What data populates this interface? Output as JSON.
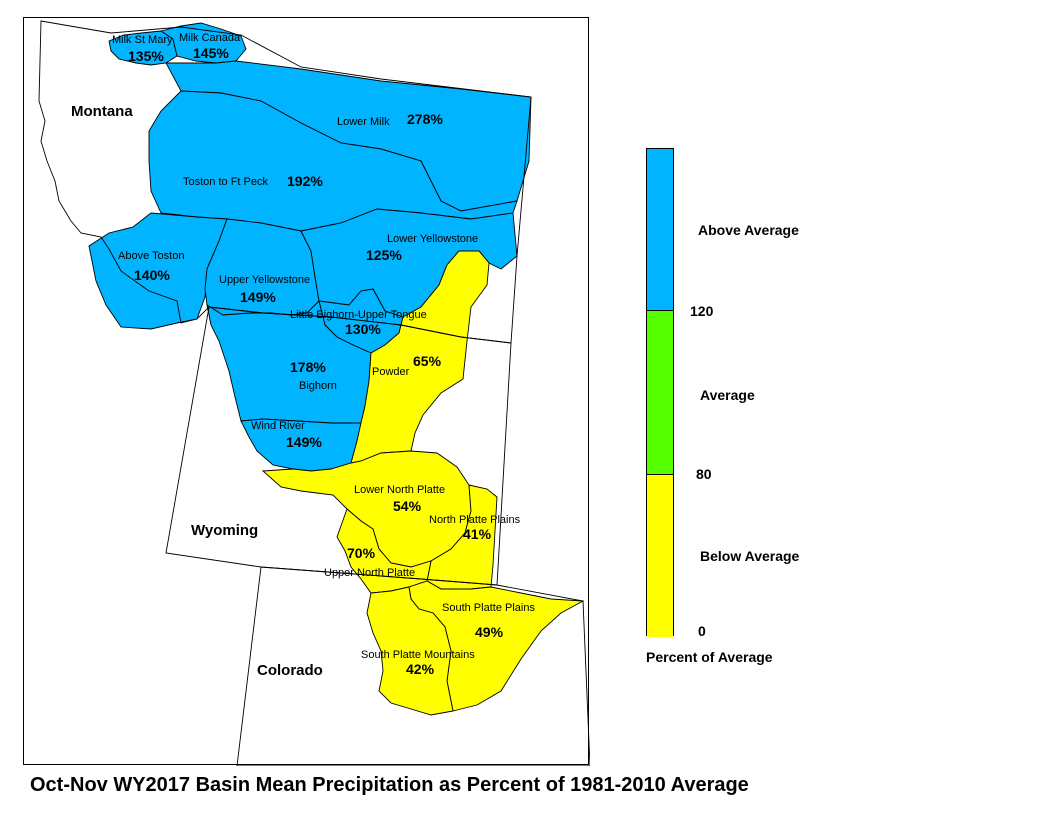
{
  "map": {
    "states": [
      {
        "id": "montana",
        "name": "Montana"
      },
      {
        "id": "wyoming",
        "name": "Wyoming"
      },
      {
        "id": "colorado",
        "name": "Colorado"
      }
    ],
    "basins": [
      {
        "id": "milk-st-mary",
        "name": "Milk St Mary",
        "percent": "135%",
        "category": "above"
      },
      {
        "id": "milk-canada",
        "name": "Milk Canada",
        "percent": "145%",
        "category": "above"
      },
      {
        "id": "lower-milk",
        "name": "Lower Milk",
        "percent": "278%",
        "category": "above"
      },
      {
        "id": "toston-to-ft-peck",
        "name": "Toston to Ft Peck",
        "percent": "192%",
        "category": "above"
      },
      {
        "id": "above-toston",
        "name": "Above Toston",
        "percent": "140%",
        "category": "above"
      },
      {
        "id": "upper-yellowstone",
        "name": "Upper Yellowstone",
        "percent": "149%",
        "category": "above"
      },
      {
        "id": "lower-yellowstone",
        "name": "Lower Yellowstone",
        "percent": "125%",
        "category": "above"
      },
      {
        "id": "little-bighorn-upper-tongue",
        "name": "Little Bighorn-Upper Tongue",
        "percent": "130%",
        "category": "above"
      },
      {
        "id": "bighorn",
        "name": "Bighorn",
        "percent": "178%",
        "category": "above"
      },
      {
        "id": "wind-river",
        "name": "Wind River",
        "percent": "149%",
        "category": "above"
      },
      {
        "id": "powder",
        "name": "Powder",
        "percent": "65%",
        "category": "below"
      },
      {
        "id": "lower-north-platte",
        "name": "Lower North Platte",
        "percent": "54%",
        "category": "below"
      },
      {
        "id": "north-platte-plains",
        "name": "North Platte Plains",
        "percent": "41%",
        "category": "below"
      },
      {
        "id": "upper-north-platte",
        "name": "Upper North Platte",
        "percent": "70%",
        "category": "below"
      },
      {
        "id": "south-platte-plains",
        "name": "South Platte Plains",
        "percent": "49%",
        "category": "below"
      },
      {
        "id": "south-platte-mountains",
        "name": "South Platte Mountains",
        "percent": "42%",
        "category": "below"
      }
    ],
    "colors": {
      "above": "#00b4ff",
      "average": "#55ff00",
      "below": "#ffff00",
      "outline": "#000000",
      "background": "#ffffff"
    }
  },
  "legend": {
    "categories": [
      {
        "id": "above",
        "label": "Above Average",
        "color": "#00b4ff"
      },
      {
        "id": "average",
        "label": "Average",
        "color": "#55ff00"
      },
      {
        "id": "below",
        "label": "Below Average",
        "color": "#ffff00"
      }
    ],
    "thresholds": [
      "120",
      "80",
      "0"
    ],
    "title": "Percent of Average"
  },
  "caption": "Oct-Nov WY2017 Basin Mean Precipitation as Percent of 1981-2010 Average"
}
